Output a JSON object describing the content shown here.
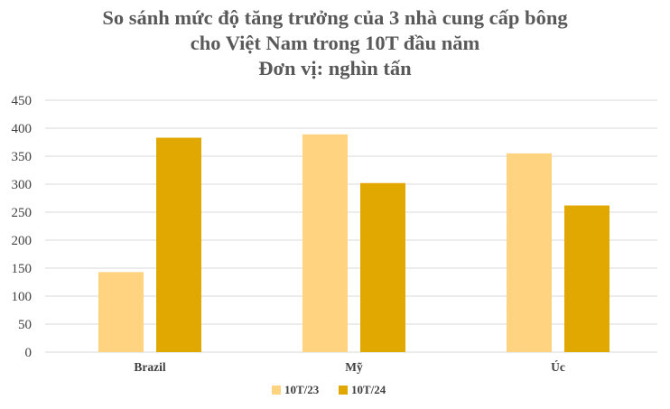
{
  "chart_data": {
    "type": "bar",
    "title_lines": [
      "So sánh mức độ tăng trưởng của 3 nhà cung cấp bông",
      "cho Việt Nam trong 10T đầu năm",
      "Đơn vị: nghìn tấn"
    ],
    "categories": [
      "Brazil",
      "Mỹ",
      "Úc"
    ],
    "series": [
      {
        "name": "10T/23",
        "values": [
          143,
          389,
          355
        ],
        "color": "#FFD37F"
      },
      {
        "name": "10T/24",
        "values": [
          383,
          302,
          262
        ],
        "color": "#E0A800"
      }
    ],
    "ylim": [
      0,
      450
    ],
    "yticks": [
      0,
      50,
      100,
      150,
      200,
      250,
      300,
      350,
      400,
      450
    ],
    "grid": true,
    "legend_position": "bottom",
    "colors": {
      "title": "#595959",
      "axis_text": "#404040",
      "grid": "#D9D9D9"
    }
  }
}
